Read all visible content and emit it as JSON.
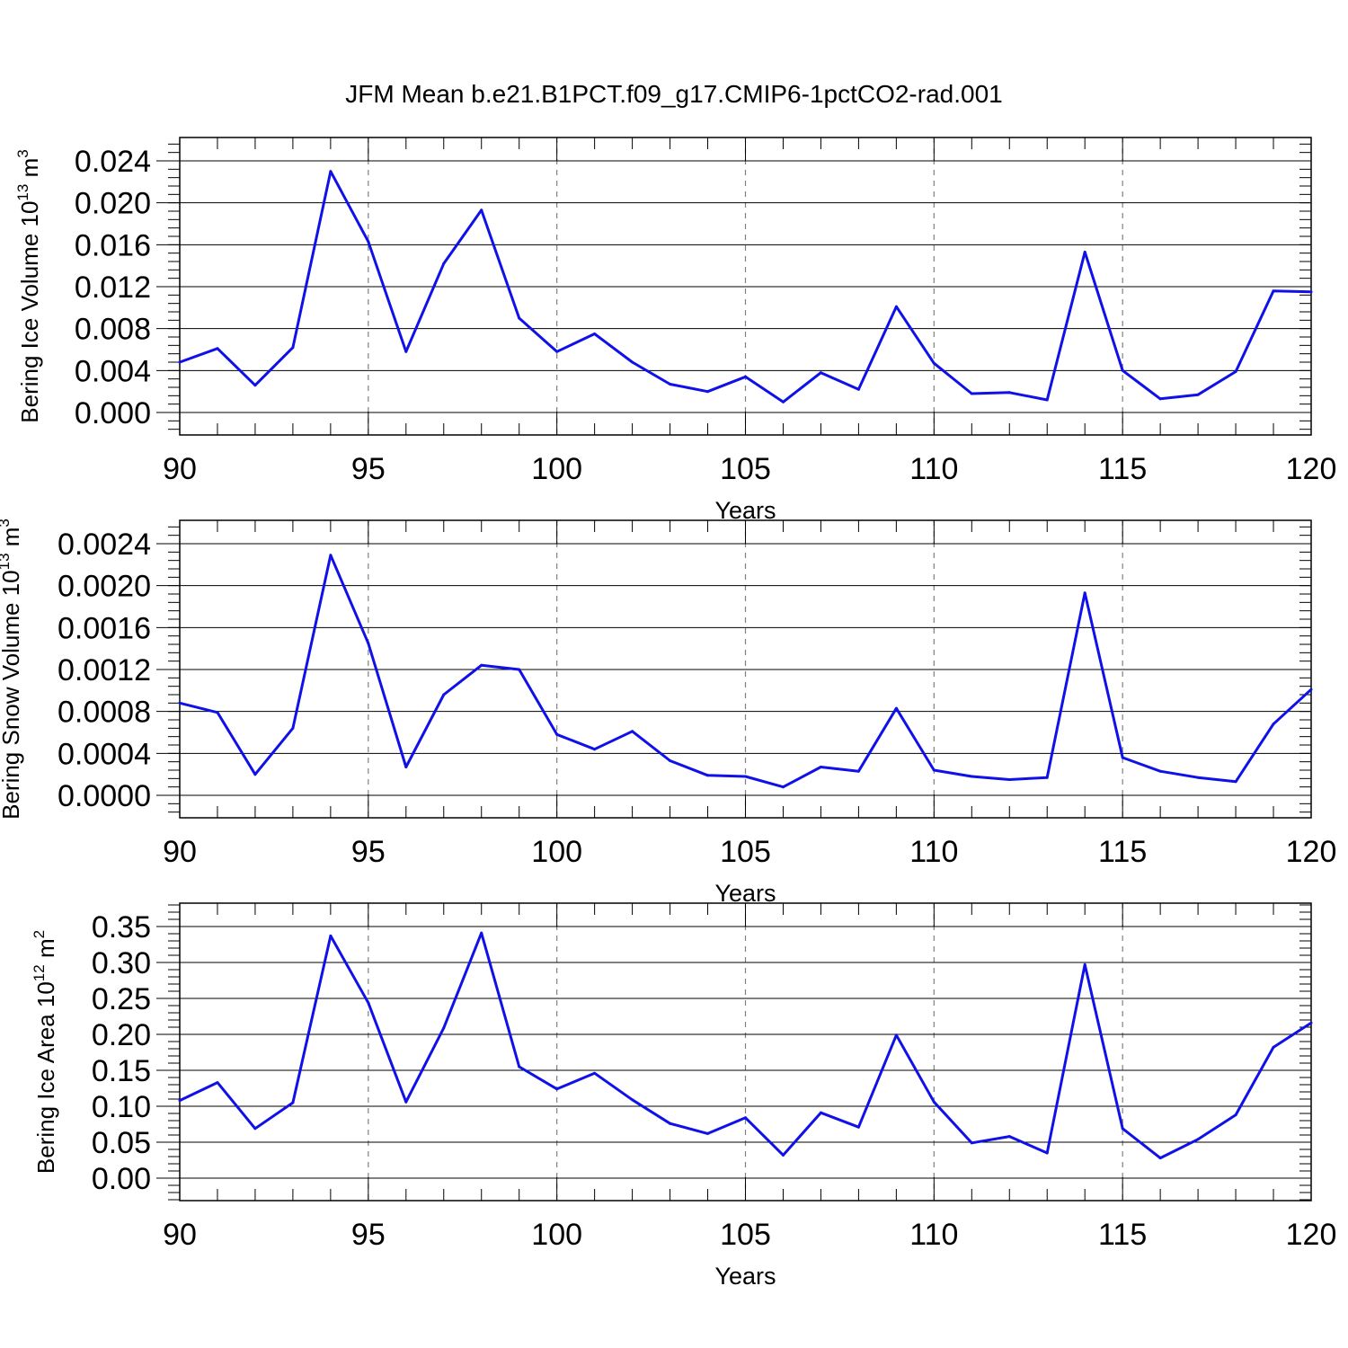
{
  "title": "JFM Mean b.e21.B1PCT.f09_g17.CMIP6-1pctCO2-rad.001",
  "chart_data": [
    {
      "type": "line",
      "ylabel": "Bering Ice Volume 10",
      "ylabel_exp": "13",
      "ylabel_unit": " m",
      "ylabel_unit_exp": "3",
      "xlabel": "Years",
      "xlim": [
        90,
        120
      ],
      "ylim": [
        0.0,
        0.024
      ],
      "yticks": [
        "0.000",
        "0.004",
        "0.008",
        "0.012",
        "0.016",
        "0.020",
        "0.024"
      ],
      "ytick_values": [
        0.0,
        0.004,
        0.008,
        0.012,
        0.016,
        0.02,
        0.024
      ],
      "xticks": [
        "90",
        "95",
        "100",
        "105",
        "110",
        "115",
        "120"
      ],
      "series_color": "#1010e8",
      "x": [
        90,
        91,
        92,
        93,
        94,
        95,
        96,
        97,
        98,
        99,
        100,
        101,
        102,
        103,
        104,
        105,
        106,
        107,
        108,
        109,
        110,
        111,
        112,
        113,
        114,
        115,
        116,
        117,
        118,
        119,
        120
      ],
      "y": [
        0.0048,
        0.0061,
        0.0026,
        0.0062,
        0.023,
        0.0163,
        0.0058,
        0.0142,
        0.0193,
        0.009,
        0.0058,
        0.0075,
        0.0048,
        0.0027,
        0.002,
        0.0034,
        0.001,
        0.0038,
        0.0022,
        0.0101,
        0.0047,
        0.0018,
        0.0019,
        0.0012,
        0.0153,
        0.004,
        0.0013,
        0.0017,
        0.0039,
        0.0116,
        0.0115
      ]
    },
    {
      "type": "line",
      "ylabel": "Bering Snow Volume 10",
      "ylabel_exp": "13",
      "ylabel_unit": " m",
      "ylabel_unit_exp": "3",
      "xlabel": "Years",
      "xlim": [
        90,
        120
      ],
      "ylim": [
        0.0,
        0.0024
      ],
      "yticks": [
        "0.0000",
        "0.0004",
        "0.0008",
        "0.0012",
        "0.0016",
        "0.0020",
        "0.0024"
      ],
      "ytick_values": [
        0.0,
        0.0004,
        0.0008,
        0.0012,
        0.0016,
        0.002,
        0.0024
      ],
      "xticks": [
        "90",
        "95",
        "100",
        "105",
        "110",
        "115",
        "120"
      ],
      "series_color": "#1010e8",
      "x": [
        90,
        91,
        92,
        93,
        94,
        95,
        96,
        97,
        98,
        99,
        100,
        101,
        102,
        103,
        104,
        105,
        106,
        107,
        108,
        109,
        110,
        111,
        112,
        113,
        114,
        115,
        116,
        117,
        118,
        119,
        120
      ],
      "y": [
        0.00088,
        0.00079,
        0.0002,
        0.00064,
        0.00229,
        0.00145,
        0.00027,
        0.00096,
        0.00124,
        0.0012,
        0.00058,
        0.00044,
        0.00061,
        0.00033,
        0.00019,
        0.00018,
        8e-05,
        0.00027,
        0.00023,
        0.00083,
        0.00024,
        0.00018,
        0.00015,
        0.00017,
        0.00193,
        0.00036,
        0.00023,
        0.00017,
        0.00013,
        0.00068,
        0.00101
      ]
    },
    {
      "type": "line",
      "ylabel": "Bering Ice Area 10",
      "ylabel_exp": "12",
      "ylabel_unit": " m",
      "ylabel_unit_exp": "2",
      "xlabel": "Years",
      "xlim": [
        90,
        120
      ],
      "ylim": [
        0.0,
        0.35
      ],
      "yticks": [
        "0.00",
        "0.05",
        "0.10",
        "0.15",
        "0.20",
        "0.25",
        "0.30",
        "0.35"
      ],
      "ytick_values": [
        0.0,
        0.05,
        0.1,
        0.15,
        0.2,
        0.25,
        0.3,
        0.35
      ],
      "xticks": [
        "90",
        "95",
        "100",
        "105",
        "110",
        "115",
        "120"
      ],
      "series_color": "#1010e8",
      "x": [
        90,
        91,
        92,
        93,
        94,
        95,
        96,
        97,
        98,
        99,
        100,
        101,
        102,
        103,
        104,
        105,
        106,
        107,
        108,
        109,
        110,
        111,
        112,
        113,
        114,
        115,
        116,
        117,
        118,
        119,
        120
      ],
      "y": [
        0.108,
        0.133,
        0.069,
        0.105,
        0.337,
        0.244,
        0.106,
        0.209,
        0.341,
        0.155,
        0.124,
        0.146,
        0.109,
        0.076,
        0.062,
        0.084,
        0.032,
        0.091,
        0.071,
        0.199,
        0.106,
        0.049,
        0.058,
        0.035,
        0.297,
        0.069,
        0.028,
        0.054,
        0.088,
        0.182,
        0.216
      ]
    }
  ]
}
